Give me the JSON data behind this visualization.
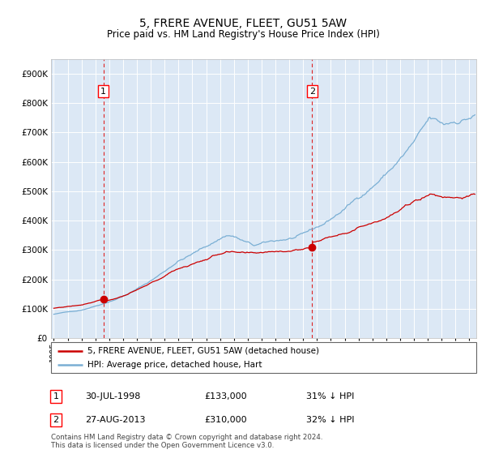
{
  "title": "5, FRERE AVENUE, FLEET, GU51 5AW",
  "subtitle": "Price paid vs. HM Land Registry's House Price Index (HPI)",
  "hpi_color": "#7aafd4",
  "price_color": "#cc0000",
  "bg_color": "#dce8f5",
  "purchase1_date": 1998.58,
  "purchase1_price": 133000,
  "purchase2_date": 2013.65,
  "purchase2_price": 310000,
  "ylim_max": 950000,
  "xlim_start": 1994.8,
  "xlim_end": 2025.5,
  "legend_label_red": "5, FRERE AVENUE, FLEET, GU51 5AW (detached house)",
  "legend_label_blue": "HPI: Average price, detached house, Hart",
  "table_row1_num": "1",
  "table_row1_date": "30-JUL-1998",
  "table_row1_price": "£133,000",
  "table_row1_hpi": "31% ↓ HPI",
  "table_row2_num": "2",
  "table_row2_date": "27-AUG-2013",
  "table_row2_price": "£310,000",
  "table_row2_hpi": "32% ↓ HPI",
  "footnote_line1": "Contains HM Land Registry data © Crown copyright and database right 2024.",
  "footnote_line2": "This data is licensed under the Open Government Licence v3.0."
}
